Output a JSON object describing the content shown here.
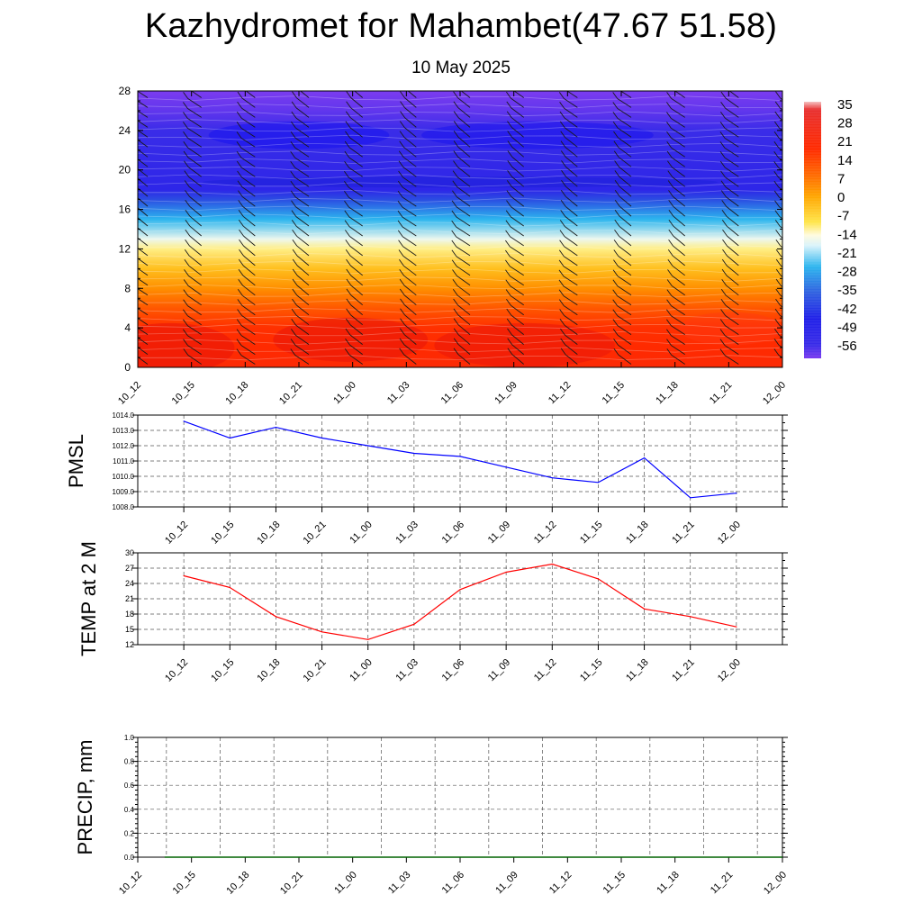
{
  "header": {
    "title": "Kazhydromet for Mahambet(47.67 51.58)",
    "subtitle": "10 May 2025"
  },
  "chart_data": [
    {
      "type": "heatmap",
      "title": "",
      "xlabel": "",
      "ylabel": "",
      "categories": [
        "10_12",
        "10_15",
        "10_18",
        "10_21",
        "11_00",
        "11_03",
        "11_06",
        "11_09",
        "11_12",
        "11_15",
        "11_18",
        "11_21",
        "12_00"
      ],
      "y_ticks": [
        0,
        4,
        8,
        12,
        16,
        20,
        24,
        28
      ],
      "ylim": [
        0,
        28
      ],
      "colorbar": {
        "labels": [
          "35",
          "28",
          "21",
          "14",
          "7",
          "0",
          "-7",
          "-14",
          "-21",
          "-28",
          "-35",
          "-42",
          "-49",
          "-56"
        ],
        "stops": [
          {
            "v": 38,
            "c": "#f5c0c0"
          },
          {
            "v": 35,
            "c": "#e83030"
          },
          {
            "v": 20,
            "c": "#ff2a00"
          },
          {
            "v": 10,
            "c": "#ff6a00"
          },
          {
            "v": 2,
            "c": "#ffa500"
          },
          {
            "v": -8,
            "c": "#ffe54a"
          },
          {
            "v": -13,
            "c": "#fffbe0"
          },
          {
            "v": -17,
            "c": "#d9f3fb"
          },
          {
            "v": -25,
            "c": "#2db5ee"
          },
          {
            "v": -35,
            "c": "#3060e0"
          },
          {
            "v": -45,
            "c": "#2020e8"
          },
          {
            "v": -55,
            "c": "#3a2ce8"
          },
          {
            "v": -60,
            "c": "#7b3cf0"
          }
        ]
      },
      "temperature_profile": [
        {
          "h": 0,
          "t": 22
        },
        {
          "h": 2,
          "t": 20
        },
        {
          "h": 4,
          "t": 19
        },
        {
          "h": 6,
          "t": 13
        },
        {
          "h": 8,
          "t": 5
        },
        {
          "h": 10,
          "t": -2
        },
        {
          "h": 12,
          "t": -10
        },
        {
          "h": 13,
          "t": -15
        },
        {
          "h": 15,
          "t": -25
        },
        {
          "h": 17,
          "t": -38
        },
        {
          "h": 18,
          "t": -50
        },
        {
          "h": 20,
          "t": -52
        },
        {
          "h": 22,
          "t": -53
        },
        {
          "h": 24,
          "t": -55
        },
        {
          "h": 26,
          "t": -58
        },
        {
          "h": 28,
          "t": -60
        }
      ]
    },
    {
      "type": "line",
      "title": "",
      "xlabel": "",
      "ylabel": "PMSL",
      "categories": [
        "10_12",
        "10_15",
        "10_18",
        "10_21",
        "11_00",
        "11_03",
        "11_06",
        "11_09",
        "11_12",
        "11_15",
        "11_18",
        "11_21",
        "12_00"
      ],
      "series": [
        {
          "values": [
            1013.6,
            1012.5,
            1013.2,
            1012.5,
            1012.0,
            1011.5,
            1011.3,
            1010.6,
            1009.9,
            1009.6,
            1011.2,
            1008.6,
            1008.9
          ],
          "color": "#0000ff"
        }
      ],
      "y_ticks": [
        "1014.0",
        "1013.0",
        "1012.0",
        "1011.0",
        "1010.0",
        "1009.0",
        "1008.0"
      ],
      "ylim": [
        1008,
        1014
      ],
      "grid": true
    },
    {
      "type": "line",
      "title": "",
      "xlabel": "",
      "ylabel": "TEMP at 2 M",
      "categories": [
        "10_12",
        "10_15",
        "10_18",
        "10_21",
        "11_00",
        "11_03",
        "11_06",
        "11_09",
        "11_12",
        "11_15",
        "11_18",
        "11_21",
        "12_00"
      ],
      "series": [
        {
          "values": [
            25.5,
            23.2,
            17.5,
            14.5,
            13.0,
            16.0,
            22.8,
            26.2,
            27.8,
            24.9,
            19.0,
            17.5,
            15.5
          ],
          "color": "#ff0000"
        }
      ],
      "y_ticks": [
        "30",
        "27",
        "24",
        "21",
        "18",
        "15",
        "12"
      ],
      "ylim": [
        12,
        30
      ],
      "grid": true
    },
    {
      "type": "line",
      "title": "",
      "xlabel": "",
      "ylabel": "PRECIP, mm",
      "categories": [
        "10_12",
        "10_15",
        "10_18",
        "10_21",
        "11_00",
        "11_03",
        "11_06",
        "11_09",
        "11_12",
        "11_15",
        "11_18",
        "11_21",
        "12_00"
      ],
      "series": [
        {
          "values": [
            0,
            0,
            0,
            0,
            0,
            0,
            0,
            0,
            0,
            0,
            0,
            0,
            0
          ],
          "color": "#006400"
        }
      ],
      "y_ticks": [
        "1.0",
        "0.8",
        "0.6",
        "0.4",
        "0.2",
        "0.0"
      ],
      "ylim": [
        0,
        1
      ],
      "grid": true
    }
  ]
}
